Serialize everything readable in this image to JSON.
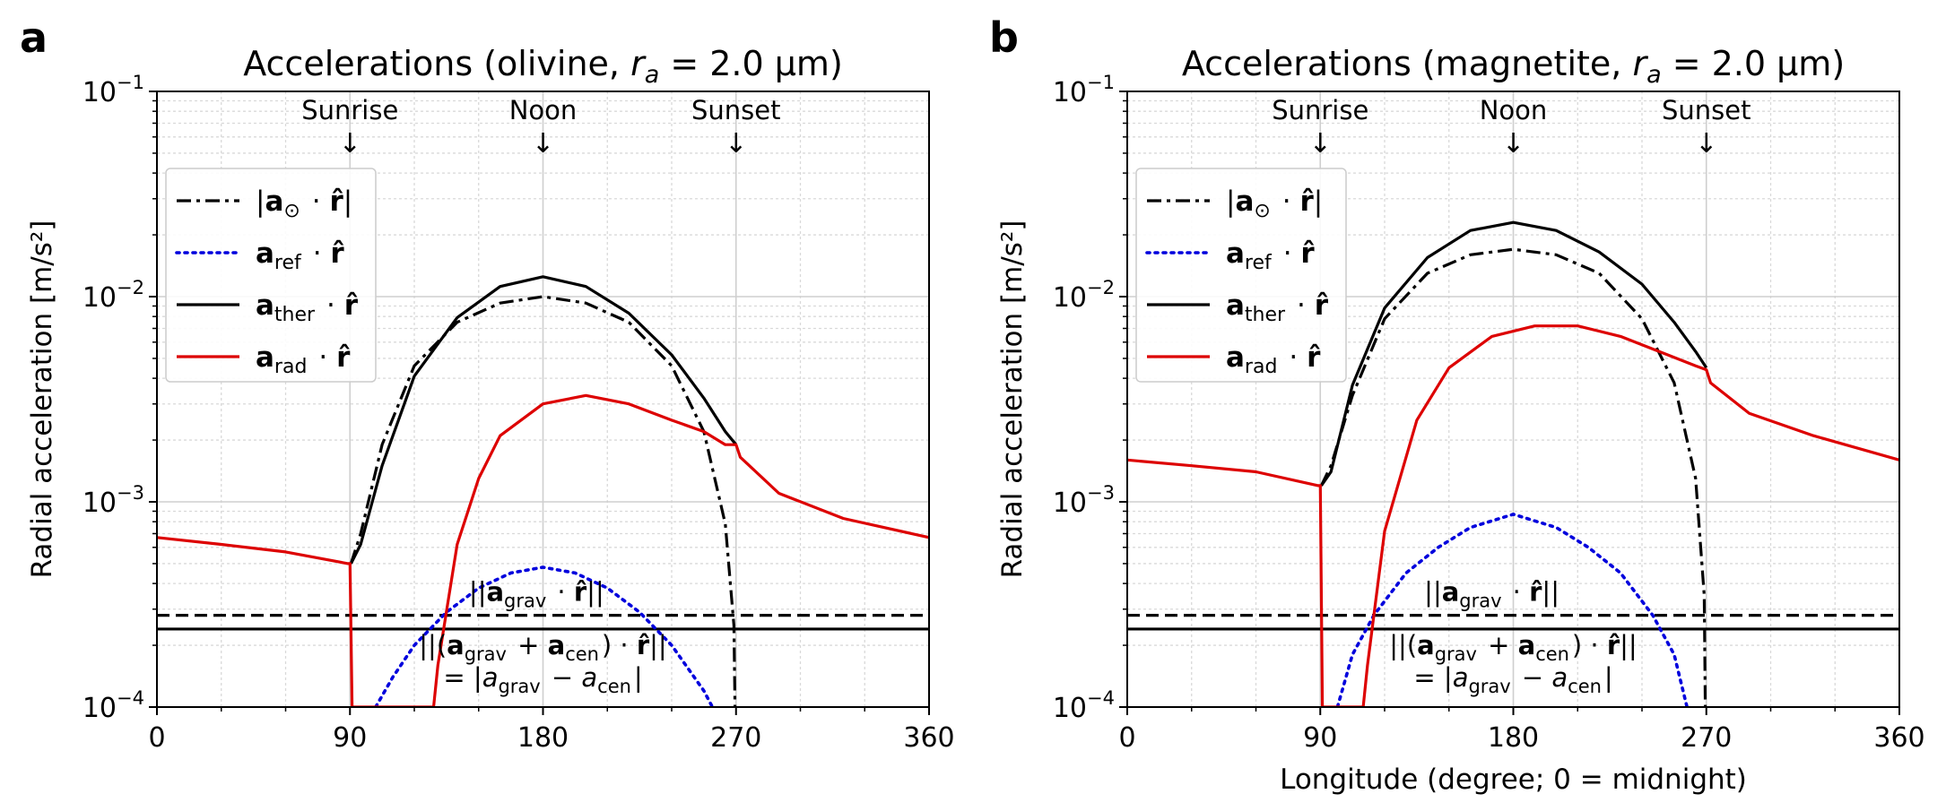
{
  "panels": [
    {
      "label": "a",
      "title_prefix": "Accelerations (olivine, ",
      "title_var": "r",
      "title_sub": "a",
      "title_suffix": " = 2.0 μm)",
      "ylabel": "Radial acceleration [m/s²]",
      "xlabel": ""
    },
    {
      "label": "b",
      "title_prefix": "Accelerations (magnetite, ",
      "title_var": "r",
      "title_sub": "a",
      "title_suffix": " = 2.0 μm)",
      "ylabel": "Radial acceleration [m/s²]",
      "xlabel": "Longitude (degree; 0 = midnight)"
    }
  ],
  "markers": [
    {
      "label": "Sunrise",
      "x": 90
    },
    {
      "label": "Noon",
      "x": 180
    },
    {
      "label": "Sunset",
      "x": 270
    }
  ],
  "marker_arrow": "↓",
  "x_ticks": [
    "0",
    "90",
    "180",
    "270",
    "360"
  ],
  "y_ticks": [
    {
      "base": "10",
      "exp": "−1"
    },
    {
      "base": "10",
      "exp": "−2"
    },
    {
      "base": "10",
      "exp": "−3"
    },
    {
      "base": "10",
      "exp": "−4"
    }
  ],
  "legend": [
    {
      "parts": [
        [
          "|",
          ""
        ],
        [
          "a",
          "b"
        ],
        [
          "⊙",
          "sub"
        ],
        [
          " · ",
          ""
        ],
        [
          "r̂",
          "b"
        ],
        [
          "|",
          ""
        ]
      ],
      "color": "#000000",
      "dash": "dashdot"
    },
    {
      "parts": [
        [
          "a",
          "b"
        ],
        [
          "ref",
          "sub"
        ],
        [
          " · ",
          ""
        ],
        [
          "r̂",
          "b"
        ]
      ],
      "color": "#0000dd",
      "dash": "dot"
    },
    {
      "parts": [
        [
          "a",
          "b"
        ],
        [
          "ther",
          "sub"
        ],
        [
          " · ",
          ""
        ],
        [
          "r̂",
          "b"
        ]
      ],
      "color": "#000000",
      "dash": "solid"
    },
    {
      "parts": [
        [
          "a",
          "b"
        ],
        [
          "rad",
          "sub"
        ],
        [
          " · ",
          ""
        ],
        [
          "r̂",
          "b"
        ]
      ],
      "color": "#dd0000",
      "dash": "solid"
    }
  ],
  "annotations": {
    "grav": [
      [
        "||",
        ""
      ],
      [
        "a",
        "b"
      ],
      [
        "grav",
        "sub"
      ],
      [
        " · ",
        ""
      ],
      [
        "r̂",
        "b"
      ],
      [
        "||",
        ""
      ]
    ],
    "net_line1": [
      [
        "||(",
        ""
      ],
      [
        "a",
        "b"
      ],
      [
        "grav",
        "sub"
      ],
      [
        " + ",
        ""
      ],
      [
        "a",
        "b"
      ],
      [
        "cen",
        "sub"
      ],
      [
        ") · ",
        ""
      ],
      [
        "r̂",
        "b"
      ],
      [
        "||",
        ""
      ]
    ],
    "net_line2": [
      [
        "= |",
        ""
      ],
      [
        "a",
        "i"
      ],
      [
        "grav",
        "sub"
      ],
      [
        " − ",
        ""
      ],
      [
        "a",
        "i"
      ],
      [
        "cen",
        "sub"
      ],
      [
        "|",
        ""
      ]
    ]
  },
  "chart_data": [
    {
      "type": "line",
      "title": "Accelerations (olivine, r_a = 2.0 μm)",
      "xlabel": "",
      "ylabel": "Radial acceleration [m/s²]",
      "xlim": [
        0,
        360
      ],
      "ylim": [
        0.0001,
        0.1
      ],
      "yscale": "log",
      "grid": true,
      "legend_position": "upper-left",
      "series": [
        {
          "name": "|a⊙ · r̂|",
          "style": "dashdot",
          "color": "#000000",
          "x": [
            90.5,
            95,
            105,
            120,
            140,
            160,
            180,
            200,
            220,
            240,
            255,
            265,
            269,
            269.5
          ],
          "y": [
            0.0005,
            0.0007,
            0.0019,
            0.0046,
            0.0075,
            0.0093,
            0.01,
            0.0093,
            0.0075,
            0.0046,
            0.0022,
            0.00078,
            0.00025,
            0.0001
          ]
        },
        {
          "name": "a_ref · r̂",
          "style": "dot",
          "color": "#0000dd",
          "x": [
            102,
            110,
            120,
            135,
            150,
            165,
            180,
            195,
            210,
            225,
            240,
            255,
            259
          ],
          "y": [
            0.0001,
            0.00014,
            0.0002,
            0.00029,
            0.00038,
            0.00045,
            0.00048,
            0.00045,
            0.00038,
            0.00029,
            0.0002,
            0.00012,
            0.0001
          ]
        },
        {
          "name": "a_ther · r̂",
          "style": "solid",
          "color": "#000000",
          "x": [
            90.5,
            95,
            105,
            120,
            140,
            160,
            180,
            200,
            220,
            240,
            255,
            265,
            270
          ],
          "y": [
            0.0005,
            0.00062,
            0.0015,
            0.0041,
            0.0079,
            0.0112,
            0.0125,
            0.0112,
            0.0083,
            0.0052,
            0.0032,
            0.0022,
            0.0019
          ]
        },
        {
          "name": "a_rad · r̂",
          "style": "solid",
          "color": "#dd0000",
          "x": [
            0,
            30,
            60,
            89,
            90,
            91,
            129,
            131,
            140,
            150,
            160,
            180,
            200,
            220,
            240,
            255,
            265,
            270,
            272,
            290,
            320,
            360
          ],
          "y": [
            0.00067,
            0.00062,
            0.00057,
            0.0005,
            0.0005,
            0.0001,
            0.0001,
            0.00016,
            0.00062,
            0.0013,
            0.0021,
            0.003,
            0.0033,
            0.003,
            0.0025,
            0.0022,
            0.0019,
            0.0019,
            0.00165,
            0.0011,
            0.00083,
            0.00067
          ]
        }
      ],
      "horizontal_lines": [
        {
          "name": "||a_grav · r̂||",
          "style": "dashed",
          "y": 0.00028
        },
        {
          "name": "||(a_grav + a_cen) · r̂|| = |a_grav − a_cen|",
          "style": "solid",
          "y": 0.00024
        }
      ]
    },
    {
      "type": "line",
      "title": "Accelerations (magnetite, r_a = 2.0 μm)",
      "xlabel": "Longitude (degree; 0 = midnight)",
      "ylabel": "Radial acceleration [m/s²]",
      "xlim": [
        0,
        360
      ],
      "ylim": [
        0.0001,
        0.1
      ],
      "yscale": "log",
      "grid": true,
      "legend_position": "upper-left",
      "series": [
        {
          "name": "|a⊙ · r̂|",
          "style": "dashdot",
          "color": "#000000",
          "x": [
            90.5,
            95,
            105,
            120,
            140,
            160,
            180,
            200,
            220,
            240,
            255,
            265,
            269,
            269.5
          ],
          "y": [
            0.0012,
            0.0015,
            0.0033,
            0.0078,
            0.013,
            0.016,
            0.017,
            0.016,
            0.013,
            0.0078,
            0.0038,
            0.0013,
            0.00035,
            0.0001
          ]
        },
        {
          "name": "a_ref · r̂",
          "style": "dot",
          "color": "#0000dd",
          "x": [
            98,
            105,
            115,
            130,
            145,
            160,
            180,
            200,
            215,
            230,
            245,
            255,
            261
          ],
          "y": [
            0.0001,
            0.00018,
            0.00028,
            0.00045,
            0.0006,
            0.00075,
            0.00087,
            0.00075,
            0.0006,
            0.00045,
            0.00028,
            0.00018,
            0.0001
          ]
        },
        {
          "name": "a_ther · r̂",
          "style": "solid",
          "color": "#000000",
          "x": [
            90.5,
            95,
            105,
            120,
            140,
            160,
            180,
            200,
            220,
            240,
            255,
            265,
            270
          ],
          "y": [
            0.0012,
            0.0014,
            0.0037,
            0.0088,
            0.0155,
            0.021,
            0.023,
            0.021,
            0.0165,
            0.0115,
            0.0075,
            0.0054,
            0.0045
          ]
        },
        {
          "name": "a_rad · r̂",
          "style": "solid",
          "color": "#dd0000",
          "x": [
            0,
            30,
            60,
            89,
            90,
            91,
            110,
            112,
            120,
            135,
            150,
            170,
            190,
            210,
            230,
            250,
            265,
            270,
            272,
            290,
            320,
            360
          ],
          "y": [
            0.0016,
            0.0015,
            0.0014,
            0.0012,
            0.0012,
            0.0001,
            0.0001,
            0.00016,
            0.00072,
            0.0025,
            0.0045,
            0.0064,
            0.0072,
            0.0072,
            0.0064,
            0.0053,
            0.0046,
            0.0044,
            0.0038,
            0.0027,
            0.0021,
            0.0016
          ]
        }
      ],
      "horizontal_lines": [
        {
          "name": "||a_grav · r̂||",
          "style": "dashed",
          "y": 0.00028
        },
        {
          "name": "||(a_grav + a_cen) · r̂|| = |a_grav − a_cen|",
          "style": "solid",
          "y": 0.00024
        }
      ]
    }
  ]
}
